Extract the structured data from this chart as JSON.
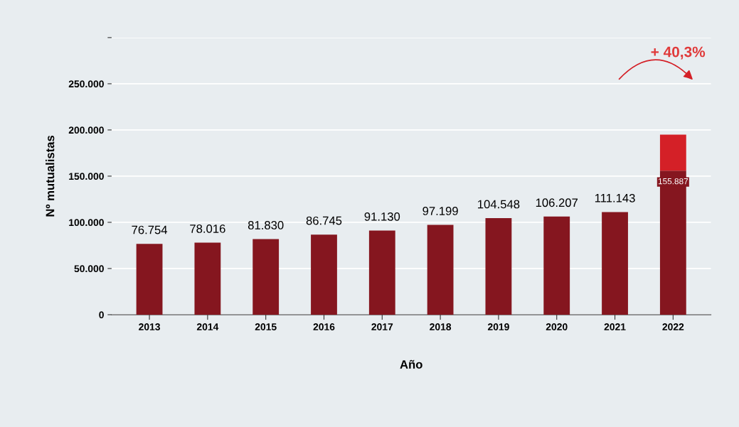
{
  "chart_data": {
    "type": "bar",
    "stacked": true,
    "xlabel": "Año",
    "ylabel": "Nº mutualistas",
    "categories": [
      "2013",
      "2014",
      "2015",
      "2016",
      "2017",
      "2018",
      "2019",
      "2020",
      "2021",
      "2022"
    ],
    "series": [
      {
        "color": "#85161f",
        "values": [
          76754,
          78016,
          81830,
          86745,
          91130,
          97199,
          104548,
          106207,
          111143,
          155887
        ],
        "value_labels": [
          "76.754",
          "78.016",
          "81.830",
          "86.745",
          "91.130",
          "97.199",
          "104.548",
          "106.207",
          "111.143",
          "155.887"
        ]
      },
      {
        "color": "#d42027",
        "values": [
          null,
          null,
          null,
          null,
          null,
          null,
          null,
          null,
          null,
          39000
        ]
      }
    ],
    "ylim": [
      0,
      300000
    ],
    "yticks": [
      {
        "value": 0,
        "label": "0"
      },
      {
        "value": 50000,
        "label": "50.000"
      },
      {
        "value": 100000,
        "label": "100.000"
      },
      {
        "value": 150000,
        "label": "150.000"
      },
      {
        "value": 200000,
        "label": "200.000"
      },
      {
        "value": 250000,
        "label": "250.000"
      },
      {
        "value": 300000,
        "label": null
      }
    ],
    "grid": "y",
    "legend": false,
    "annotations": [
      "+ 40,3%"
    ]
  }
}
